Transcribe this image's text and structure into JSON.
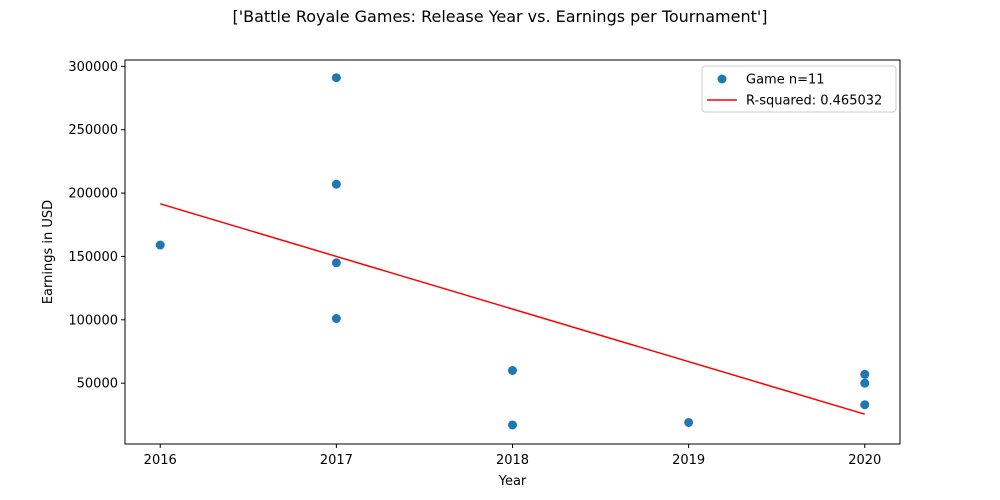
{
  "chart_data": {
    "type": "scatter",
    "title": "['Battle Royale Games: Release Year vs. Earnings per Tournament']",
    "xlabel": "Year",
    "ylabel": "Earnings in USD",
    "xlim": [
      2015.8,
      2020.2
    ],
    "ylim": [
      2000,
      305000
    ],
    "xticks": [
      2016,
      2017,
      2018,
      2019,
      2020
    ],
    "xtick_labels": [
      "2016",
      "2017",
      "2018",
      "2019",
      "2020"
    ],
    "yticks": [
      50000,
      100000,
      150000,
      200000,
      250000,
      300000
    ],
    "ytick_labels": [
      "50000",
      "100000",
      "150000",
      "200000",
      "250000",
      "300000"
    ],
    "grid": false,
    "legend_position": "top-right",
    "series": [
      {
        "name": "Game n=11",
        "kind": "scatter",
        "color": "#1f77b4",
        "points": [
          {
            "x": 2016,
            "y": 159000
          },
          {
            "x": 2017,
            "y": 291000
          },
          {
            "x": 2017,
            "y": 207000
          },
          {
            "x": 2017,
            "y": 145000
          },
          {
            "x": 2017,
            "y": 101000
          },
          {
            "x": 2018,
            "y": 60000
          },
          {
            "x": 2018,
            "y": 17000
          },
          {
            "x": 2019,
            "y": 19000
          },
          {
            "x": 2020,
            "y": 57000
          },
          {
            "x": 2020,
            "y": 50000
          },
          {
            "x": 2020,
            "y": 33000
          }
        ]
      },
      {
        "name": "R-squared: 0.465032",
        "kind": "line",
        "color": "#ff0000",
        "points": [
          {
            "x": 2016,
            "y": 191500
          },
          {
            "x": 2020,
            "y": 25500
          }
        ]
      }
    ]
  }
}
